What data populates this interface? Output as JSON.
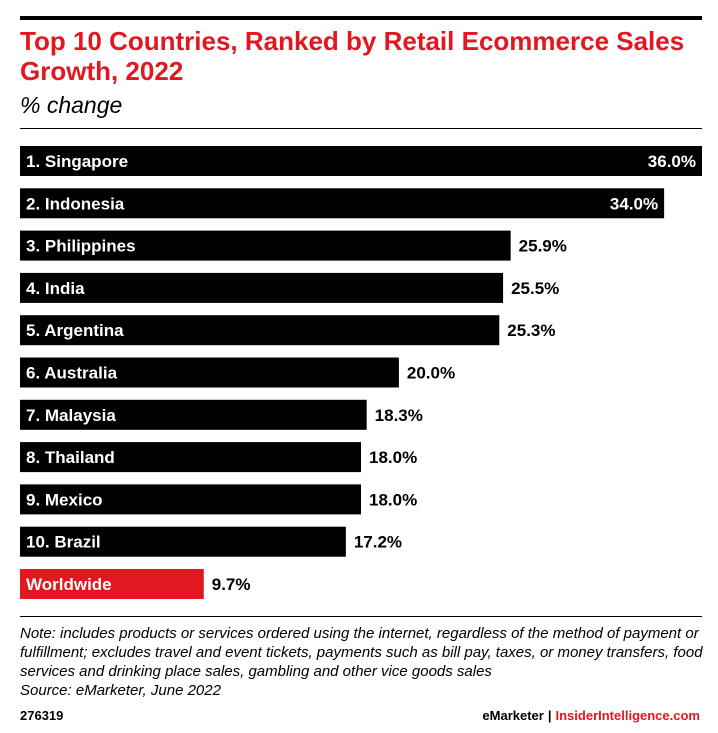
{
  "header": {
    "title": "Top 10 Countries, Ranked by Retail Ecommerce Sales Growth, 2022",
    "subtitle": "% change"
  },
  "chart_data": {
    "type": "bar",
    "orientation": "horizontal",
    "title": "Top 10 Countries, Ranked by Retail Ecommerce Sales Growth, 2022",
    "subtitle": "% change",
    "categories": [
      "1. Singapore",
      "2. Indonesia",
      "3. Philippines",
      "4. India",
      "5. Argentina",
      "6. Australia",
      "7. Malaysia",
      "8. Thailand",
      "9. Mexico",
      "10. Brazil",
      "Worldwide"
    ],
    "values": [
      36.0,
      34.0,
      25.9,
      25.5,
      25.3,
      20.0,
      18.3,
      18.0,
      18.0,
      17.2,
      9.7
    ],
    "value_labels": [
      "36.0%",
      "34.0%",
      "25.9%",
      "25.5%",
      "25.3%",
      "20.0%",
      "18.3%",
      "18.0%",
      "18.0%",
      "17.2%",
      "9.7%"
    ],
    "bar_colors": [
      "#000000",
      "#000000",
      "#000000",
      "#000000",
      "#000000",
      "#000000",
      "#000000",
      "#000000",
      "#000000",
      "#000000",
      "#e3171f"
    ],
    "xlim": [
      0,
      36.0
    ],
    "grid": false,
    "legend": "none"
  },
  "footer": {
    "note": "Note: includes products or services ordered using the internet, regardless of the method of payment or fulfillment; excludes travel and event tickets, payments such as bill pay, taxes, or money transfers, food services and drinking place sales, gambling and other vice goods sales",
    "source": "Source: eMarketer, June 2022",
    "chart_id": "276319",
    "brand_emarketer": "eMarketer",
    "separator": "|",
    "brand_insider": "InsiderIntelligence.com"
  },
  "colors": {
    "accent": "#e3171f",
    "bar": "#000000"
  }
}
